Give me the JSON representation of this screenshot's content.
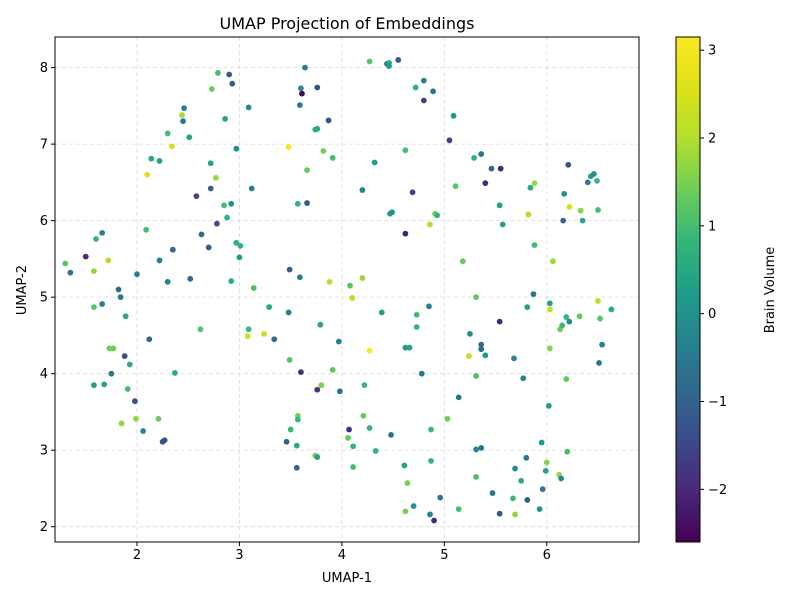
{
  "chart_data": {
    "type": "scatter",
    "title": "UMAP Projection of Embeddings",
    "xlabel": "UMAP-1",
    "ylabel": "UMAP-2",
    "xlim": [
      1.2,
      6.9
    ],
    "ylim": [
      1.8,
      8.4
    ],
    "xticks": [
      2,
      3,
      4,
      5,
      6
    ],
    "yticks": [
      2,
      3,
      4,
      5,
      6,
      7,
      8
    ],
    "grid": true,
    "grid_style": "dashed",
    "colorbar": {
      "label": "Brain Volume",
      "colormap": "viridis",
      "range": [
        -2.6,
        3.15
      ],
      "ticks": [
        -2,
        -1,
        0,
        1,
        2,
        3
      ]
    },
    "points": [
      {
        "x": 1.3,
        "y": 5.44,
        "c": 1.2
      },
      {
        "x": 1.35,
        "y": 5.32,
        "c": -0.6
      },
      {
        "x": 1.5,
        "y": 5.53,
        "c": -1.9
      },
      {
        "x": 1.58,
        "y": 5.34,
        "c": 1.7
      },
      {
        "x": 1.6,
        "y": 5.76,
        "c": 0.8
      },
      {
        "x": 1.66,
        "y": 5.84,
        "c": -0.3
      },
      {
        "x": 1.58,
        "y": 4.87,
        "c": 1.2
      },
      {
        "x": 1.66,
        "y": 4.91,
        "c": -0.4
      },
      {
        "x": 1.72,
        "y": 5.48,
        "c": 2.0
      },
      {
        "x": 1.82,
        "y": 5.1,
        "c": -0.8
      },
      {
        "x": 1.84,
        "y": 5.0,
        "c": -0.6
      },
      {
        "x": 1.89,
        "y": 4.75,
        "c": 0.5
      },
      {
        "x": 1.73,
        "y": 4.33,
        "c": 1.4
      },
      {
        "x": 1.77,
        "y": 4.33,
        "c": 1.4
      },
      {
        "x": 1.88,
        "y": 4.23,
        "c": -1.4
      },
      {
        "x": 1.93,
        "y": 4.12,
        "c": 0.6
      },
      {
        "x": 1.75,
        "y": 4.0,
        "c": -0.6
      },
      {
        "x": 1.58,
        "y": 3.85,
        "c": 0.3
      },
      {
        "x": 1.68,
        "y": 3.86,
        "c": 0.4
      },
      {
        "x": 1.91,
        "y": 3.8,
        "c": 1.0
      },
      {
        "x": 1.98,
        "y": 3.64,
        "c": -1.3
      },
      {
        "x": 1.99,
        "y": 3.41,
        "c": 1.7
      },
      {
        "x": 1.85,
        "y": 3.35,
        "c": 1.7
      },
      {
        "x": 2.06,
        "y": 3.25,
        "c": -0.2
      },
      {
        "x": 2.21,
        "y": 3.41,
        "c": 1.4
      },
      {
        "x": 2.25,
        "y": 3.11,
        "c": -1.3
      },
      {
        "x": 2.27,
        "y": 3.13,
        "c": -1.3
      },
      {
        "x": 2.37,
        "y": 4.01,
        "c": 0.6
      },
      {
        "x": 2.0,
        "y": 5.3,
        "c": -0.3
      },
      {
        "x": 2.09,
        "y": 5.88,
        "c": 1.0
      },
      {
        "x": 2.12,
        "y": 4.45,
        "c": -0.8
      },
      {
        "x": 2.22,
        "y": 5.48,
        "c": -0.4
      },
      {
        "x": 2.3,
        "y": 5.2,
        "c": -0.4
      },
      {
        "x": 2.35,
        "y": 5.62,
        "c": -0.9
      },
      {
        "x": 2.52,
        "y": 5.24,
        "c": -0.8
      },
      {
        "x": 2.14,
        "y": 6.81,
        "c": 0.5
      },
      {
        "x": 2.22,
        "y": 6.78,
        "c": 0.4
      },
      {
        "x": 2.1,
        "y": 6.6,
        "c": 2.6
      },
      {
        "x": 2.34,
        "y": 6.97,
        "c": 2.4
      },
      {
        "x": 2.3,
        "y": 7.14,
        "c": 1.0
      },
      {
        "x": 2.44,
        "y": 7.38,
        "c": 1.9
      },
      {
        "x": 2.46,
        "y": 7.47,
        "c": -0.3
      },
      {
        "x": 2.45,
        "y": 7.3,
        "c": -0.6
      },
      {
        "x": 2.51,
        "y": 7.09,
        "c": 0.4
      },
      {
        "x": 2.58,
        "y": 6.32,
        "c": -1.5
      },
      {
        "x": 2.63,
        "y": 5.82,
        "c": -0.8
      },
      {
        "x": 2.7,
        "y": 5.65,
        "c": -1.1
      },
      {
        "x": 2.62,
        "y": 4.58,
        "c": 1.2
      },
      {
        "x": 2.72,
        "y": 6.75,
        "c": 0.4
      },
      {
        "x": 2.72,
        "y": 6.42,
        "c": -1.0
      },
      {
        "x": 2.77,
        "y": 6.56,
        "c": 1.8
      },
      {
        "x": 2.78,
        "y": 5.96,
        "c": -1.3
      },
      {
        "x": 2.85,
        "y": 6.2,
        "c": 1.0
      },
      {
        "x": 2.88,
        "y": 6.04,
        "c": 0.8
      },
      {
        "x": 2.92,
        "y": 6.22,
        "c": 0.0
      },
      {
        "x": 2.73,
        "y": 7.72,
        "c": 1.4
      },
      {
        "x": 2.79,
        "y": 7.93,
        "c": 1.0
      },
      {
        "x": 2.9,
        "y": 7.91,
        "c": -1.2
      },
      {
        "x": 2.93,
        "y": 7.79,
        "c": -1.0
      },
      {
        "x": 2.86,
        "y": 7.33,
        "c": 0.4
      },
      {
        "x": 2.97,
        "y": 6.94,
        "c": 0.0
      },
      {
        "x": 2.97,
        "y": 5.71,
        "c": 0.7
      },
      {
        "x": 3.01,
        "y": 5.67,
        "c": 0.7
      },
      {
        "x": 3.0,
        "y": 5.52,
        "c": 0.2
      },
      {
        "x": 2.92,
        "y": 5.21,
        "c": 0.7
      },
      {
        "x": 3.09,
        "y": 7.48,
        "c": -0.1
      },
      {
        "x": 3.12,
        "y": 6.42,
        "c": -0.4
      },
      {
        "x": 3.14,
        "y": 5.12,
        "c": 1.1
      },
      {
        "x": 3.09,
        "y": 4.58,
        "c": 0.9
      },
      {
        "x": 3.08,
        "y": 4.49,
        "c": 2.3
      },
      {
        "x": 3.24,
        "y": 4.52,
        "c": 2.2
      },
      {
        "x": 3.29,
        "y": 4.87,
        "c": 0.5
      },
      {
        "x": 3.34,
        "y": 4.45,
        "c": -0.8
      },
      {
        "x": 3.48,
        "y": 4.8,
        "c": -0.3
      },
      {
        "x": 3.49,
        "y": 4.18,
        "c": 1.2
      },
      {
        "x": 3.49,
        "y": 5.36,
        "c": -1.1
      },
      {
        "x": 3.59,
        "y": 5.26,
        "c": -0.5
      },
      {
        "x": 3.48,
        "y": 6.96,
        "c": 3.1
      },
      {
        "x": 3.59,
        "y": 7.51,
        "c": -0.5
      },
      {
        "x": 3.6,
        "y": 7.73,
        "c": 0.0
      },
      {
        "x": 3.61,
        "y": 7.66,
        "c": -2.5
      },
      {
        "x": 3.64,
        "y": 8.0,
        "c": -0.4
      },
      {
        "x": 3.76,
        "y": 7.74,
        "c": -1.3
      },
      {
        "x": 3.74,
        "y": 7.19,
        "c": 0.7
      },
      {
        "x": 3.76,
        "y": 7.2,
        "c": 0.5
      },
      {
        "x": 3.87,
        "y": 7.31,
        "c": -1.3
      },
      {
        "x": 3.82,
        "y": 6.91,
        "c": 1.5
      },
      {
        "x": 3.91,
        "y": 6.82,
        "c": 1.0
      },
      {
        "x": 3.66,
        "y": 6.66,
        "c": 1.3
      },
      {
        "x": 3.57,
        "y": 6.22,
        "c": 0.8
      },
      {
        "x": 3.66,
        "y": 6.23,
        "c": -1.2
      },
      {
        "x": 3.79,
        "y": 4.64,
        "c": 0.4
      },
      {
        "x": 3.97,
        "y": 4.42,
        "c": -0.4
      },
      {
        "x": 3.91,
        "y": 4.05,
        "c": 1.2
      },
      {
        "x": 3.6,
        "y": 4.02,
        "c": -1.9
      },
      {
        "x": 3.8,
        "y": 3.85,
        "c": 1.5
      },
      {
        "x": 3.76,
        "y": 3.79,
        "c": -1.8
      },
      {
        "x": 3.98,
        "y": 3.77,
        "c": -0.6
      },
      {
        "x": 3.57,
        "y": 3.45,
        "c": 1.5
      },
      {
        "x": 3.57,
        "y": 3.4,
        "c": 0.8
      },
      {
        "x": 3.5,
        "y": 3.27,
        "c": 0.9
      },
      {
        "x": 3.46,
        "y": 3.11,
        "c": -1.0
      },
      {
        "x": 3.56,
        "y": 3.06,
        "c": 0.6
      },
      {
        "x": 3.74,
        "y": 2.93,
        "c": 1.6
      },
      {
        "x": 3.76,
        "y": 2.91,
        "c": 0.4
      },
      {
        "x": 3.56,
        "y": 2.77,
        "c": -0.9
      },
      {
        "x": 3.88,
        "y": 5.2,
        "c": 2.0
      },
      {
        "x": 4.08,
        "y": 5.15,
        "c": 1.2
      },
      {
        "x": 4.1,
        "y": 4.99,
        "c": 2.0
      },
      {
        "x": 4.2,
        "y": 5.25,
        "c": 1.8
      },
      {
        "x": 4.39,
        "y": 4.8,
        "c": 0.3
      },
      {
        "x": 4.27,
        "y": 4.3,
        "c": 3.0
      },
      {
        "x": 4.22,
        "y": 3.85,
        "c": 0.8
      },
      {
        "x": 4.21,
        "y": 3.45,
        "c": 1.3
      },
      {
        "x": 4.27,
        "y": 3.29,
        "c": 0.8
      },
      {
        "x": 4.07,
        "y": 3.27,
        "c": -1.9
      },
      {
        "x": 4.06,
        "y": 3.16,
        "c": 1.3
      },
      {
        "x": 4.11,
        "y": 3.05,
        "c": 0.8
      },
      {
        "x": 4.33,
        "y": 2.99,
        "c": 0.8
      },
      {
        "x": 4.11,
        "y": 2.78,
        "c": 1.0
      },
      {
        "x": 4.48,
        "y": 3.2,
        "c": -0.7
      },
      {
        "x": 4.2,
        "y": 6.4,
        "c": -0.3
      },
      {
        "x": 4.32,
        "y": 6.76,
        "c": 0.2
      },
      {
        "x": 4.47,
        "y": 6.09,
        "c": 0.2
      },
      {
        "x": 4.49,
        "y": 6.11,
        "c": 0.1
      },
      {
        "x": 4.62,
        "y": 6.92,
        "c": 1.0
      },
      {
        "x": 4.69,
        "y": 6.37,
        "c": -1.5
      },
      {
        "x": 4.62,
        "y": 5.83,
        "c": -2.1
      },
      {
        "x": 4.27,
        "y": 8.08,
        "c": 1.2
      },
      {
        "x": 4.44,
        "y": 8.05,
        "c": -0.6
      },
      {
        "x": 4.46,
        "y": 8.06,
        "c": 0.4
      },
      {
        "x": 4.46,
        "y": 8.02,
        "c": 0.2
      },
      {
        "x": 4.55,
        "y": 8.1,
        "c": -1.1
      },
      {
        "x": 4.72,
        "y": 7.74,
        "c": 0.7
      },
      {
        "x": 4.8,
        "y": 7.83,
        "c": -0.3
      },
      {
        "x": 4.89,
        "y": 7.69,
        "c": -0.6
      },
      {
        "x": 4.8,
        "y": 7.57,
        "c": -1.6
      },
      {
        "x": 4.86,
        "y": 5.95,
        "c": 2.0
      },
      {
        "x": 4.91,
        "y": 6.09,
        "c": 1.4
      },
      {
        "x": 4.93,
        "y": 6.07,
        "c": 0.8
      },
      {
        "x": 5.05,
        "y": 7.05,
        "c": -1.6
      },
      {
        "x": 5.09,
        "y": 7.37,
        "c": 0.1
      },
      {
        "x": 5.11,
        "y": 6.45,
        "c": 1.2
      },
      {
        "x": 5.18,
        "y": 5.47,
        "c": 1.3
      },
      {
        "x": 4.73,
        "y": 4.77,
        "c": 1.0
      },
      {
        "x": 4.73,
        "y": 4.61,
        "c": 0.8
      },
      {
        "x": 4.85,
        "y": 4.88,
        "c": -0.3
      },
      {
        "x": 4.62,
        "y": 4.34,
        "c": 0.2
      },
      {
        "x": 4.66,
        "y": 4.34,
        "c": 0.4
      },
      {
        "x": 4.78,
        "y": 4.0,
        "c": -0.6
      },
      {
        "x": 4.87,
        "y": 3.27,
        "c": 0.9
      },
      {
        "x": 4.87,
        "y": 2.86,
        "c": 0.8
      },
      {
        "x": 4.61,
        "y": 2.8,
        "c": 0.3
      },
      {
        "x": 4.64,
        "y": 2.57,
        "c": 1.5
      },
      {
        "x": 4.7,
        "y": 2.27,
        "c": 0.1
      },
      {
        "x": 4.62,
        "y": 2.2,
        "c": 1.5
      },
      {
        "x": 4.86,
        "y": 2.16,
        "c": -0.3
      },
      {
        "x": 4.9,
        "y": 2.08,
        "c": -1.9
      },
      {
        "x": 4.96,
        "y": 2.38,
        "c": -0.6
      },
      {
        "x": 5.03,
        "y": 3.41,
        "c": 1.4
      },
      {
        "x": 5.14,
        "y": 3.69,
        "c": -0.6
      },
      {
        "x": 5.14,
        "y": 2.23,
        "c": 1.0
      },
      {
        "x": 5.25,
        "y": 4.52,
        "c": -0.1
      },
      {
        "x": 5.24,
        "y": 4.23,
        "c": 2.2
      },
      {
        "x": 5.36,
        "y": 4.38,
        "c": -0.8
      },
      {
        "x": 5.36,
        "y": 4.32,
        "c": -0.8
      },
      {
        "x": 5.4,
        "y": 4.24,
        "c": 0.2
      },
      {
        "x": 5.31,
        "y": 3.97,
        "c": 1.1
      },
      {
        "x": 5.31,
        "y": 5.0,
        "c": 1.3
      },
      {
        "x": 5.29,
        "y": 6.82,
        "c": 0.7
      },
      {
        "x": 5.36,
        "y": 6.87,
        "c": -0.6
      },
      {
        "x": 5.46,
        "y": 6.68,
        "c": -0.9
      },
      {
        "x": 5.4,
        "y": 6.49,
        "c": -1.9
      },
      {
        "x": 5.55,
        "y": 6.68,
        "c": -2.0
      },
      {
        "x": 5.54,
        "y": 6.2,
        "c": 0.4
      },
      {
        "x": 5.57,
        "y": 5.95,
        "c": 0.4
      },
      {
        "x": 5.31,
        "y": 3.01,
        "c": -0.2
      },
      {
        "x": 5.36,
        "y": 3.03,
        "c": -0.6
      },
      {
        "x": 5.31,
        "y": 2.65,
        "c": 1.1
      },
      {
        "x": 5.47,
        "y": 2.44,
        "c": -0.6
      },
      {
        "x": 5.54,
        "y": 2.17,
        "c": -1.2
      },
      {
        "x": 5.54,
        "y": 4.68,
        "c": -2.0
      },
      {
        "x": 5.68,
        "y": 4.2,
        "c": -0.2
      },
      {
        "x": 5.77,
        "y": 3.94,
        "c": -0.3
      },
      {
        "x": 5.81,
        "y": 4.87,
        "c": 0.4
      },
      {
        "x": 5.87,
        "y": 5.04,
        "c": -0.6
      },
      {
        "x": 5.82,
        "y": 6.08,
        "c": 2.0
      },
      {
        "x": 5.84,
        "y": 6.43,
        "c": 0.6
      },
      {
        "x": 5.88,
        "y": 6.49,
        "c": 1.7
      },
      {
        "x": 5.88,
        "y": 5.68,
        "c": 1.0
      },
      {
        "x": 5.69,
        "y": 2.76,
        "c": 0.0
      },
      {
        "x": 5.75,
        "y": 2.6,
        "c": 0.6
      },
      {
        "x": 5.67,
        "y": 2.37,
        "c": 0.9
      },
      {
        "x": 5.69,
        "y": 2.16,
        "c": 1.7
      },
      {
        "x": 5.81,
        "y": 2.35,
        "c": -1.1
      },
      {
        "x": 5.8,
        "y": 2.9,
        "c": -0.5
      },
      {
        "x": 5.93,
        "y": 2.23,
        "c": 0.1
      },
      {
        "x": 5.96,
        "y": 2.49,
        "c": -0.5
      },
      {
        "x": 5.99,
        "y": 2.73,
        "c": 0.4
      },
      {
        "x": 6.0,
        "y": 2.84,
        "c": 1.6
      },
      {
        "x": 5.95,
        "y": 3.1,
        "c": 0.2
      },
      {
        "x": 6.02,
        "y": 3.58,
        "c": 0.3
      },
      {
        "x": 6.03,
        "y": 4.33,
        "c": 1.6
      },
      {
        "x": 6.03,
        "y": 4.84,
        "c": 2.2
      },
      {
        "x": 6.03,
        "y": 4.92,
        "c": 0.4
      },
      {
        "x": 6.06,
        "y": 5.47,
        "c": 1.8
      },
      {
        "x": 6.12,
        "y": 2.68,
        "c": 1.8
      },
      {
        "x": 6.14,
        "y": 2.63,
        "c": -0.2
      },
      {
        "x": 6.2,
        "y": 2.98,
        "c": 1.0
      },
      {
        "x": 6.19,
        "y": 3.93,
        "c": 1.3
      },
      {
        "x": 6.13,
        "y": 4.58,
        "c": 1.4
      },
      {
        "x": 6.15,
        "y": 4.63,
        "c": 0.9
      },
      {
        "x": 6.19,
        "y": 4.74,
        "c": 0.8
      },
      {
        "x": 6.22,
        "y": 4.68,
        "c": -0.1
      },
      {
        "x": 6.32,
        "y": 4.75,
        "c": 1.3
      },
      {
        "x": 6.5,
        "y": 4.95,
        "c": 2.0
      },
      {
        "x": 6.52,
        "y": 4.72,
        "c": 1.2
      },
      {
        "x": 6.54,
        "y": 4.38,
        "c": -0.4
      },
      {
        "x": 6.51,
        "y": 4.14,
        "c": -0.5
      },
      {
        "x": 6.63,
        "y": 4.84,
        "c": 0.6
      },
      {
        "x": 6.16,
        "y": 6.0,
        "c": -0.9
      },
      {
        "x": 6.17,
        "y": 6.35,
        "c": 0.0
      },
      {
        "x": 6.22,
        "y": 6.18,
        "c": 2.4
      },
      {
        "x": 6.21,
        "y": 6.73,
        "c": -1.3
      },
      {
        "x": 6.33,
        "y": 6.13,
        "c": 1.6
      },
      {
        "x": 6.35,
        "y": 6.0,
        "c": 0.5
      },
      {
        "x": 6.4,
        "y": 6.5,
        "c": -0.3
      },
      {
        "x": 6.43,
        "y": 6.58,
        "c": 0.3
      },
      {
        "x": 6.46,
        "y": 6.61,
        "c": 0.0
      },
      {
        "x": 6.49,
        "y": 6.52,
        "c": 0.9
      },
      {
        "x": 6.5,
        "y": 6.14,
        "c": 1.0
      }
    ]
  }
}
